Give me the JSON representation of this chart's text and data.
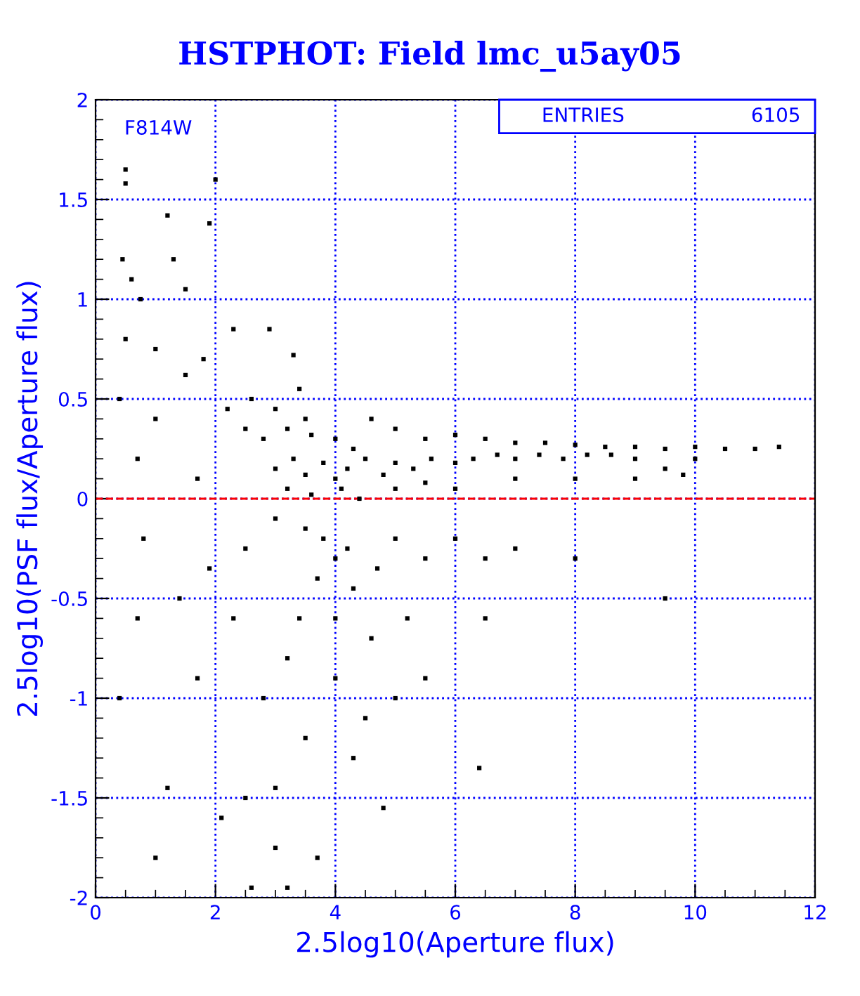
{
  "chart_data": {
    "type": "scatter",
    "title": "HSTPHOT: Field lmc_u5ay05",
    "xlabel": "2.5log10(Aperture flux)",
    "ylabel": "2.5log10(PSF flux/Aperture flux)",
    "annotations": [
      "F814W",
      "ENTRIES",
      "6105"
    ],
    "xlim": [
      0,
      12
    ],
    "ylim": [
      -2,
      2
    ],
    "xticks": [
      0,
      2,
      4,
      6,
      8,
      10,
      12
    ],
    "yticks": [
      -2,
      -1.5,
      -1,
      -0.5,
      0,
      0.5,
      1,
      1.5,
      2
    ],
    "grid": true,
    "marker": "square",
    "ref_lines": [
      {
        "axis": "y",
        "value": 0,
        "color": "#ff0000",
        "line_style": "dashed"
      }
    ],
    "series": [
      {
        "color": "#000000",
        "x": [
          0.5,
          0.5,
          0.45,
          0.6,
          0.75,
          1.2,
          1.3,
          1.5,
          1.9,
          2.0,
          0.5,
          1.0,
          1.5,
          1.8,
          2.3,
          2.9,
          3.3,
          3.4,
          0.4,
          1.0,
          2.2,
          2.6,
          3.0,
          3.5,
          0.7,
          1.7,
          2.5,
          2.8,
          3.2,
          3.6,
          4.0,
          4.3,
          4.6,
          5.0,
          5.5,
          6.0,
          6.5,
          7.0,
          7.5,
          8.0,
          8.5,
          9.0,
          9.5,
          10.0,
          10.5,
          11.0,
          11.4,
          3.0,
          3.3,
          3.5,
          3.8,
          4.0,
          4.2,
          4.5,
          4.8,
          5.0,
          5.3,
          5.6,
          6.0,
          6.3,
          6.7,
          7.0,
          7.4,
          7.8,
          8.2,
          8.6,
          9.0,
          9.5,
          10.0,
          3.2,
          3.6,
          4.1,
          4.4,
          5.0,
          5.5,
          6.0,
          7.0,
          8.0,
          9.0,
          9.8,
          3.0,
          3.5,
          3.8,
          4.0,
          4.2,
          3.7,
          4.3,
          4.7,
          5.0,
          5.5,
          6.0,
          6.5,
          7.0,
          8.0,
          3.4,
          4.0,
          4.6,
          5.2,
          6.5,
          3.2,
          4.0,
          4.5,
          5.5,
          2.8,
          3.5,
          4.3,
          3.0,
          2.5,
          2.1,
          3.0,
          3.7,
          2.6,
          3.2,
          1.0,
          1.2,
          0.4,
          0.7,
          1.4,
          1.9,
          0.8,
          1.7,
          2.3,
          2.5,
          9.5,
          6.4,
          4.8,
          5.0
        ],
        "values": [
          1.65,
          1.58,
          1.2,
          1.1,
          1.0,
          1.42,
          1.2,
          1.05,
          1.38,
          1.6,
          0.8,
          0.75,
          0.62,
          0.7,
          0.85,
          0.85,
          0.72,
          0.55,
          0.5,
          0.4,
          0.45,
          0.5,
          0.45,
          0.4,
          0.2,
          0.1,
          0.35,
          0.3,
          0.35,
          0.32,
          0.3,
          0.25,
          0.4,
          0.35,
          0.3,
          0.32,
          0.3,
          0.28,
          0.28,
          0.27,
          0.26,
          0.26,
          0.25,
          0.26,
          0.25,
          0.25,
          0.26,
          0.15,
          0.2,
          0.12,
          0.18,
          0.1,
          0.15,
          0.2,
          0.12,
          0.18,
          0.15,
          0.2,
          0.18,
          0.2,
          0.22,
          0.2,
          0.22,
          0.2,
          0.22,
          0.22,
          0.2,
          0.15,
          0.2,
          0.05,
          0.02,
          0.05,
          0.0,
          0.05,
          0.08,
          0.05,
          0.1,
          0.1,
          0.1,
          0.12,
          -0.1,
          -0.15,
          -0.2,
          -0.3,
          -0.25,
          -0.4,
          -0.45,
          -0.35,
          -0.2,
          -0.3,
          -0.2,
          -0.3,
          -0.25,
          -0.3,
          -0.6,
          -0.6,
          -0.7,
          -0.6,
          -0.6,
          -0.8,
          -0.9,
          -1.1,
          -0.9,
          -1.0,
          -1.2,
          -1.3,
          -1.45,
          -1.5,
          -1.6,
          -1.75,
          -1.8,
          -1.95,
          -1.95,
          -1.8,
          -1.45,
          -1.0,
          -0.6,
          -0.5,
          -0.35,
          -0.2,
          -0.9,
          -0.6,
          -0.25,
          -0.5,
          -1.35,
          -1.55,
          -1.0
        ]
      }
    ]
  }
}
